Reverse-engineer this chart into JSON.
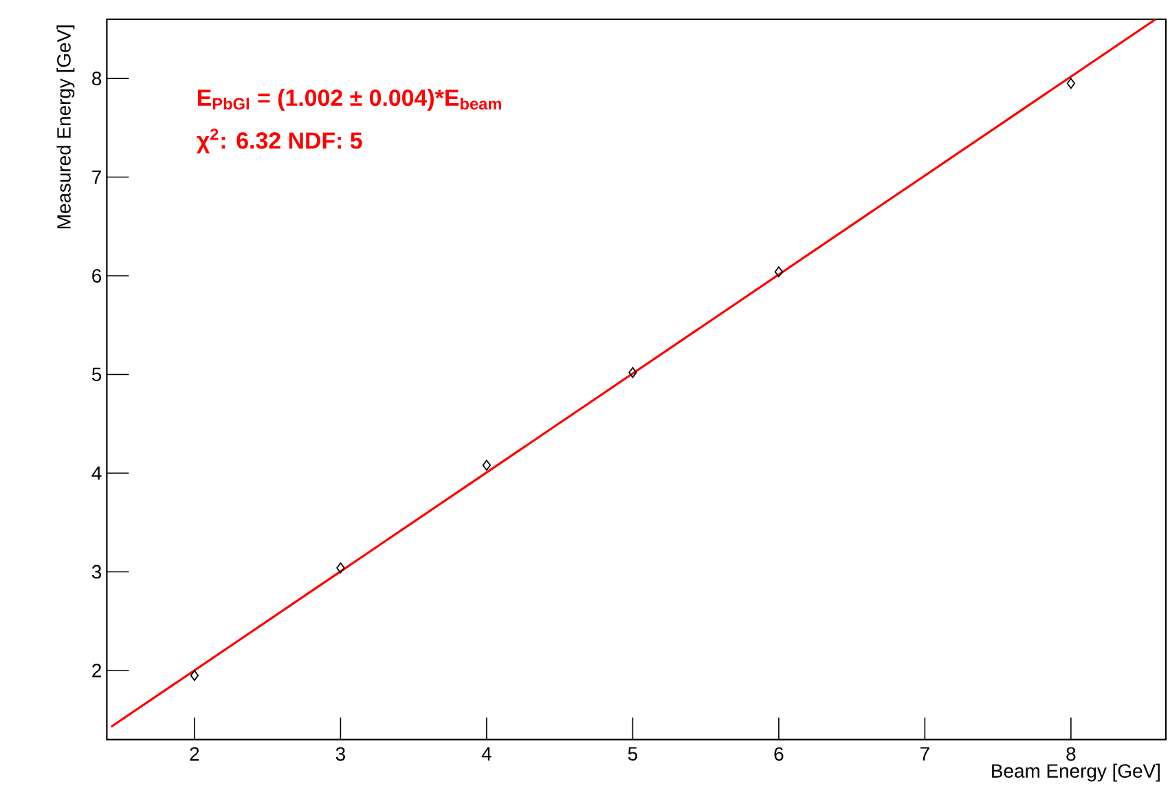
{
  "chart_data": {
    "type": "scatter",
    "xlabel": "Beam Energy [GeV]",
    "ylabel": "Measured Energy [GeV]",
    "xlim": [
      1.4,
      8.65
    ],
    "ylim": [
      1.3,
      8.6
    ],
    "xticks": [
      2,
      3,
      4,
      5,
      6,
      7,
      8
    ],
    "yticks": [
      2,
      3,
      4,
      5,
      6,
      7,
      8
    ],
    "grid": false,
    "marker": "diamond",
    "x": [
      2,
      3,
      4,
      5,
      6,
      8
    ],
    "series": [
      {
        "color": "#000000",
        "values": [
          1.95,
          3.04,
          4.08,
          5.02,
          6.04,
          7.95
        ]
      },
      {
        "type": "line",
        "color": "#ff0000",
        "marker": "none",
        "line_style": "solid",
        "x": [
          1.43,
          8.58
        ],
        "values": [
          1.43,
          8.6
        ]
      }
    ],
    "annotations": [
      "E$_{PbGl}$ = (1.002 ± 0.004)*E$_{beam}$",
      "χ$^{2}$: 6.32 NDF: 5"
    ]
  }
}
